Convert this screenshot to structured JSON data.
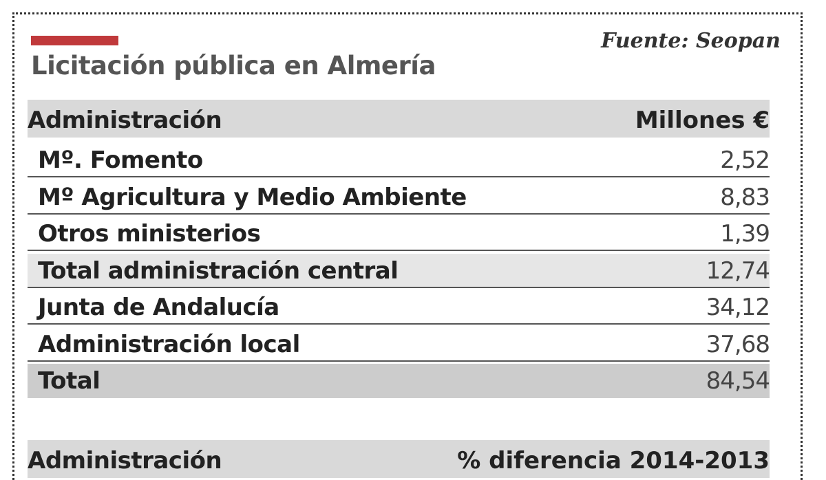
{
  "header": {
    "title": "Licitación pública en Almería",
    "source": "Fuente: Seopan"
  },
  "table": {
    "columns": [
      "Administración",
      "Millones €"
    ],
    "rows": [
      [
        "Mº. Fomento",
        "2,52"
      ],
      [
        "Mº Agricultura y Medio Ambiente",
        "8,83"
      ],
      [
        "Otros ministerios",
        "1,39"
      ],
      [
        "Total administración  central",
        "12,74"
      ],
      [
        "Junta de Andalucía",
        "34,12"
      ],
      [
        "Administración local",
        "37,68"
      ],
      [
        "Total",
        "84,54"
      ]
    ]
  },
  "table2": {
    "columns": [
      "Administración",
      "% diferencia 2014-2013"
    ]
  }
}
